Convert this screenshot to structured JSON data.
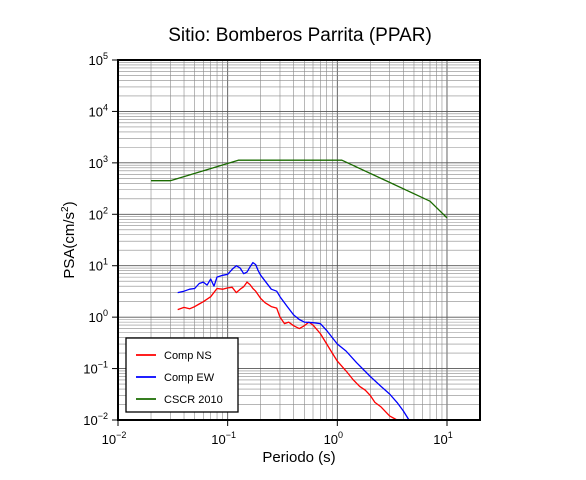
{
  "chart_data": {
    "type": "line",
    "title": "Sitio: Bomberos Parrita (PPAR)",
    "xlabel": "Periodo (s)",
    "ylabel": "PSA(cm/s²)",
    "ylabel_base": "PSA(cm/s",
    "ylabel_exp": "2",
    "ylabel_close": ")",
    "x_scale": "log",
    "y_scale": "log",
    "xlim": [
      0.01,
      20
    ],
    "ylim": [
      0.01,
      100000
    ],
    "grid": true,
    "legend_position": "bottom-left",
    "x_ticks": [
      {
        "value": 0.01,
        "base": "10",
        "exp": "−2"
      },
      {
        "value": 0.1,
        "base": "10",
        "exp": "−1"
      },
      {
        "value": 1,
        "base": "10",
        "exp": "0"
      },
      {
        "value": 10,
        "base": "10",
        "exp": "1"
      }
    ],
    "y_ticks": [
      {
        "value": 0.01,
        "base": "10",
        "exp": "−2"
      },
      {
        "value": 0.1,
        "base": "10",
        "exp": "−1"
      },
      {
        "value": 1,
        "base": "10",
        "exp": "0"
      },
      {
        "value": 10,
        "base": "10",
        "exp": "1"
      },
      {
        "value": 100,
        "base": "10",
        "exp": "2"
      },
      {
        "value": 1000,
        "base": "10",
        "exp": "3"
      },
      {
        "value": 10000,
        "base": "10",
        "exp": "4"
      },
      {
        "value": 100000,
        "base": "10",
        "exp": "5"
      }
    ],
    "series": [
      {
        "name": "Comp NS",
        "color": "#ff0000",
        "x": [
          0.035,
          0.04,
          0.045,
          0.05,
          0.055,
          0.06,
          0.07,
          0.08,
          0.09,
          0.1,
          0.11,
          0.12,
          0.13,
          0.14,
          0.15,
          0.16,
          0.17,
          0.18,
          0.2,
          0.22,
          0.25,
          0.28,
          0.3,
          0.33,
          0.36,
          0.4,
          0.45,
          0.5,
          0.55,
          0.6,
          0.7,
          0.8,
          0.9,
          1.0,
          1.2,
          1.4,
          1.6,
          1.8,
          2.0,
          2.2,
          2.5,
          3.0,
          3.5
        ],
        "y": [
          1.4,
          1.55,
          1.45,
          1.6,
          1.8,
          2.0,
          2.5,
          3.6,
          3.5,
          3.7,
          3.8,
          3.0,
          3.5,
          3.9,
          4.8,
          4.3,
          3.6,
          3.2,
          2.3,
          1.9,
          1.6,
          1.5,
          1.0,
          0.75,
          0.8,
          0.68,
          0.6,
          0.68,
          0.8,
          0.7,
          0.48,
          0.3,
          0.2,
          0.14,
          0.09,
          0.06,
          0.045,
          0.038,
          0.03,
          0.022,
          0.018,
          0.012,
          0.0095
        ]
      },
      {
        "name": "Comp EW",
        "color": "#0000ff",
        "x": [
          0.035,
          0.04,
          0.045,
          0.05,
          0.055,
          0.06,
          0.065,
          0.07,
          0.075,
          0.08,
          0.09,
          0.1,
          0.11,
          0.12,
          0.13,
          0.14,
          0.15,
          0.16,
          0.17,
          0.18,
          0.19,
          0.2,
          0.22,
          0.25,
          0.28,
          0.3,
          0.35,
          0.4,
          0.45,
          0.5,
          0.6,
          0.7,
          0.8,
          0.9,
          1.0,
          1.2,
          1.5,
          2.0,
          2.5,
          3.0,
          3.5,
          4.0,
          4.5
        ],
        "y": [
          3.0,
          3.2,
          3.5,
          3.6,
          4.5,
          4.8,
          4.2,
          5.5,
          4.0,
          6.0,
          6.5,
          6.8,
          8.5,
          10.0,
          9.0,
          7.0,
          7.5,
          9.5,
          11.5,
          10.5,
          8.0,
          6.5,
          5.0,
          3.5,
          3.2,
          2.5,
          1.6,
          1.1,
          0.9,
          0.8,
          0.78,
          0.75,
          0.55,
          0.4,
          0.3,
          0.22,
          0.13,
          0.07,
          0.045,
          0.032,
          0.022,
          0.015,
          0.01
        ]
      },
      {
        "name": "CSCR 2010",
        "color": "#1a6b00",
        "x": [
          0.02,
          0.03,
          0.125,
          1.1,
          7.0,
          10.0
        ],
        "y": [
          450,
          450,
          1125,
          1125,
          180,
          85
        ]
      }
    ]
  }
}
